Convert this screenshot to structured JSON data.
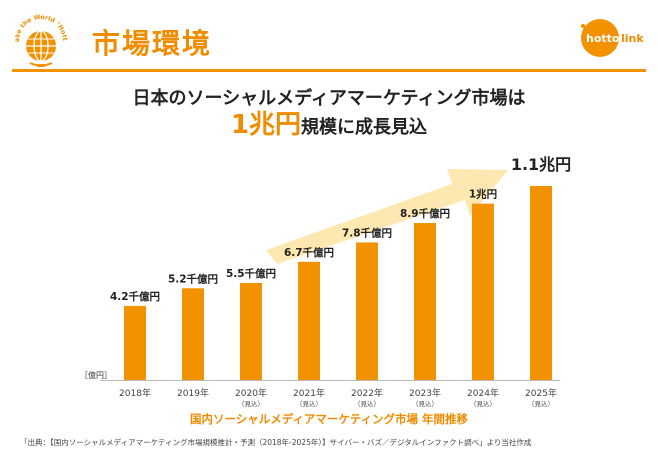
{
  "header": {
    "logo_text": "Make the World \"Hotto\"",
    "title": "市場環境",
    "brand_logo": "hottolink",
    "brand_colors": {
      "orange": "#f39200",
      "dark_orange": "#f08c00"
    }
  },
  "headline": {
    "line1": "日本のソーシャルメディアマーケティング市場は",
    "emphasis": "1兆円",
    "line2_rest": "規模に成長見込"
  },
  "chart_data": {
    "type": "bar",
    "title": "国内ソーシャルメディアマーケティング市場 年間推移",
    "ylabel": "［億円］",
    "unit": "億円",
    "categories": [
      "2018年",
      "2019年",
      "2020年",
      "2021年",
      "2022年",
      "2023年",
      "2024年",
      "2025年"
    ],
    "projection_note": "（見込）",
    "projected": [
      false,
      false,
      true,
      true,
      true,
      true,
      true,
      true
    ],
    "values": [
      4200,
      5200,
      5500,
      6700,
      7800,
      8900,
      10000,
      11000
    ],
    "value_labels": [
      "4.2千億円",
      "5.2千億円",
      "5.5千億円",
      "6.7千億円",
      "7.8千億円",
      "8.9千億円",
      "1兆円",
      "1.1兆円"
    ],
    "ylim": [
      0,
      11000
    ],
    "grid": false,
    "bar_color": "#f39200",
    "trend_arrow_color": "#fde6a8"
  },
  "source_note": "「出典：【国内ソーシャルメディアマーケティング市場規模推計・予測（2018年-2025年）】サイバー・バズ／デジタルインファクト調べ」より当社作成"
}
